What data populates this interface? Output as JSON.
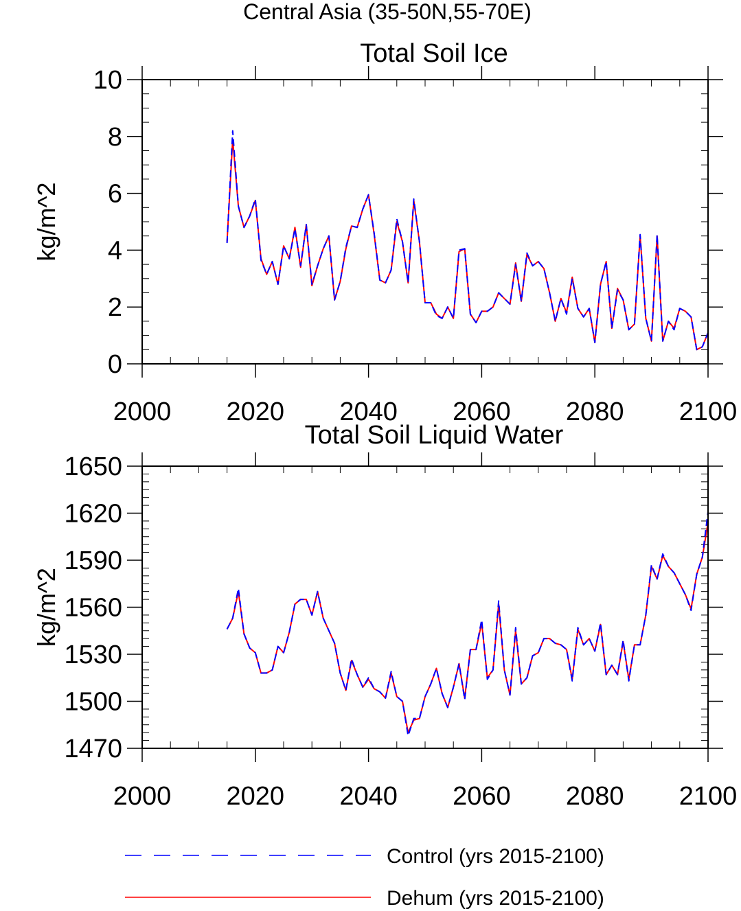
{
  "figure_title": "Central Asia (35-50N,55-70E)",
  "legend": {
    "entries": [
      {
        "label": "Control (yrs 2015-2100)",
        "color": "#0000ff",
        "dash": "dashed"
      },
      {
        "label": "Dehum (yrs 2015-2100)",
        "color": "#ff0000",
        "dash": "solid"
      }
    ]
  },
  "chart_data": [
    {
      "type": "line",
      "title": "Total Soil Ice",
      "xlabel": "",
      "ylabel": "kg/m^2",
      "xlim": [
        2000,
        2100
      ],
      "ylim": [
        0,
        10
      ],
      "xticks": [
        2000,
        2020,
        2040,
        2060,
        2080,
        2100
      ],
      "yticks": [
        0,
        2,
        4,
        6,
        8,
        10
      ],
      "x_minor_step": 5,
      "y_minor_step": 0.5,
      "x": [
        2015,
        2016,
        2017,
        2018,
        2019,
        2020,
        2021,
        2022,
        2023,
        2024,
        2025,
        2026,
        2027,
        2028,
        2029,
        2030,
        2031,
        2032,
        2033,
        2034,
        2035,
        2036,
        2037,
        2038,
        2039,
        2040,
        2041,
        2042,
        2043,
        2044,
        2045,
        2046,
        2047,
        2048,
        2049,
        2050,
        2051,
        2052,
        2053,
        2054,
        2055,
        2056,
        2057,
        2058,
        2059,
        2060,
        2061,
        2062,
        2063,
        2064,
        2065,
        2066,
        2067,
        2068,
        2069,
        2070,
        2071,
        2072,
        2073,
        2074,
        2075,
        2076,
        2077,
        2078,
        2079,
        2080,
        2081,
        2082,
        2083,
        2084,
        2085,
        2086,
        2087,
        2088,
        2089,
        2090,
        2091,
        2092,
        2093,
        2094,
        2095,
        2096,
        2097,
        2098,
        2099,
        2100
      ],
      "series": [
        {
          "name": "Control (yrs 2015-2100)",
          "color": "#0000ff",
          "dash": "dashed",
          "values": [
            4.25,
            8.2,
            5.55,
            4.8,
            5.2,
            5.8,
            3.65,
            3.15,
            3.6,
            2.8,
            4.15,
            3.7,
            4.75,
            3.45,
            4.9,
            2.8,
            3.45,
            4.05,
            4.5,
            2.25,
            2.9,
            4.1,
            4.85,
            4.8,
            5.45,
            5.95,
            4.6,
            2.95,
            2.85,
            3.3,
            5.1,
            4.3,
            2.85,
            5.8,
            4.3,
            2.15,
            2.15,
            1.7,
            1.6,
            2.0,
            1.6,
            4.0,
            4.05,
            1.75,
            1.45,
            1.85,
            1.85,
            2.0,
            2.5,
            2.3,
            2.1,
            3.5,
            2.2,
            3.9,
            3.45,
            3.6,
            3.35,
            2.5,
            1.5,
            2.3,
            1.75,
            3.0,
            1.95,
            1.65,
            1.95,
            0.75,
            2.8,
            3.6,
            1.25,
            2.6,
            2.25,
            1.2,
            1.4,
            4.55,
            1.6,
            0.8,
            4.55,
            0.8,
            1.5,
            1.2,
            1.95,
            1.85,
            1.65,
            0.5,
            0.6,
            1.1
          ]
        },
        {
          "name": "Dehum (yrs 2015-2100)",
          "color": "#ff0000",
          "dash": "solid",
          "values": [
            4.3,
            7.9,
            5.55,
            4.8,
            5.2,
            5.75,
            3.7,
            3.15,
            3.6,
            2.8,
            4.15,
            3.7,
            4.8,
            3.4,
            4.9,
            2.75,
            3.45,
            4.05,
            4.5,
            2.25,
            2.9,
            4.05,
            4.85,
            4.8,
            5.45,
            5.95,
            4.55,
            2.95,
            2.85,
            3.3,
            5.0,
            4.3,
            2.85,
            5.75,
            4.3,
            2.15,
            2.15,
            1.75,
            1.6,
            2.0,
            1.6,
            3.95,
            4.05,
            1.75,
            1.45,
            1.85,
            1.85,
            2.0,
            2.5,
            2.3,
            2.1,
            3.55,
            2.2,
            3.85,
            3.45,
            3.6,
            3.35,
            2.5,
            1.5,
            2.3,
            1.8,
            3.05,
            1.95,
            1.65,
            1.95,
            0.75,
            2.8,
            3.6,
            1.25,
            2.65,
            2.25,
            1.2,
            1.4,
            4.5,
            1.6,
            0.8,
            4.5,
            0.8,
            1.5,
            1.25,
            1.95,
            1.85,
            1.65,
            0.5,
            0.6,
            1.1
          ]
        }
      ]
    },
    {
      "type": "line",
      "title": "Total Soil Liquid Water",
      "xlabel": "",
      "ylabel": "kg/m^2",
      "xlim": [
        2000,
        2100
      ],
      "ylim": [
        1470,
        1650
      ],
      "xticks": [
        2000,
        2020,
        2040,
        2060,
        2080,
        2100
      ],
      "yticks": [
        1470,
        1500,
        1530,
        1560,
        1590,
        1620,
        1650
      ],
      "x_minor_step": 5,
      "y_minor_step": 5,
      "x": [
        2015,
        2016,
        2017,
        2018,
        2019,
        2020,
        2021,
        2022,
        2023,
        2024,
        2025,
        2026,
        2027,
        2028,
        2029,
        2030,
        2031,
        2032,
        2033,
        2034,
        2035,
        2036,
        2037,
        2038,
        2039,
        2040,
        2041,
        2042,
        2043,
        2044,
        2045,
        2046,
        2047,
        2048,
        2049,
        2050,
        2051,
        2052,
        2053,
        2054,
        2055,
        2056,
        2057,
        2058,
        2059,
        2060,
        2061,
        2062,
        2063,
        2064,
        2065,
        2066,
        2067,
        2068,
        2069,
        2070,
        2071,
        2072,
        2073,
        2074,
        2075,
        2076,
        2077,
        2078,
        2079,
        2080,
        2081,
        2082,
        2083,
        2084,
        2085,
        2086,
        2087,
        2088,
        2089,
        2090,
        2091,
        2092,
        2093,
        2094,
        2095,
        2096,
        2097,
        2098,
        2099,
        2100
      ],
      "series": [
        {
          "name": "Control (yrs 2015-2100)",
          "color": "#0000ff",
          "dash": "dashed",
          "values": [
            1546,
            1553,
            1572,
            1543,
            1534,
            1531,
            1518,
            1518,
            1520,
            1535,
            1531,
            1544,
            1562,
            1565,
            1565,
            1555,
            1570,
            1553,
            1545,
            1537,
            1518,
            1507,
            1527,
            1517,
            1509,
            1515,
            1508,
            1506,
            1502,
            1519,
            1503,
            1500,
            1478,
            1489,
            1489,
            1503,
            1511,
            1521,
            1505,
            1496,
            1509,
            1524,
            1501,
            1533,
            1533,
            1552,
            1514,
            1520,
            1564,
            1520,
            1504,
            1547,
            1511,
            1515,
            1529,
            1531,
            1540,
            1540,
            1537,
            1536,
            1533,
            1513,
            1547,
            1536,
            1540,
            1532,
            1550,
            1517,
            1523,
            1517,
            1539,
            1513,
            1536,
            1536,
            1555,
            1587,
            1578,
            1594,
            1586,
            1582,
            1575,
            1568,
            1558,
            1581,
            1592,
            1621
          ]
        },
        {
          "name": "Dehum (yrs 2015-2100)",
          "color": "#ff0000",
          "dash": "solid",
          "values": [
            1546,
            1553,
            1570,
            1543,
            1534,
            1531,
            1518,
            1518,
            1520,
            1535,
            1531,
            1544,
            1562,
            1565,
            1565,
            1555,
            1570,
            1553,
            1545,
            1537,
            1518,
            1507,
            1526,
            1517,
            1509,
            1514,
            1508,
            1506,
            1502,
            1518,
            1503,
            1500,
            1480,
            1488,
            1489,
            1503,
            1511,
            1521,
            1505,
            1496,
            1509,
            1524,
            1502,
            1533,
            1533,
            1550,
            1515,
            1520,
            1562,
            1520,
            1504,
            1545,
            1511,
            1515,
            1529,
            1531,
            1540,
            1540,
            1537,
            1536,
            1533,
            1514,
            1546,
            1536,
            1540,
            1532,
            1549,
            1517,
            1523,
            1517,
            1538,
            1514,
            1536,
            1536,
            1555,
            1586,
            1578,
            1593,
            1586,
            1582,
            1575,
            1568,
            1559,
            1581,
            1592,
            1614
          ]
        }
      ]
    }
  ]
}
